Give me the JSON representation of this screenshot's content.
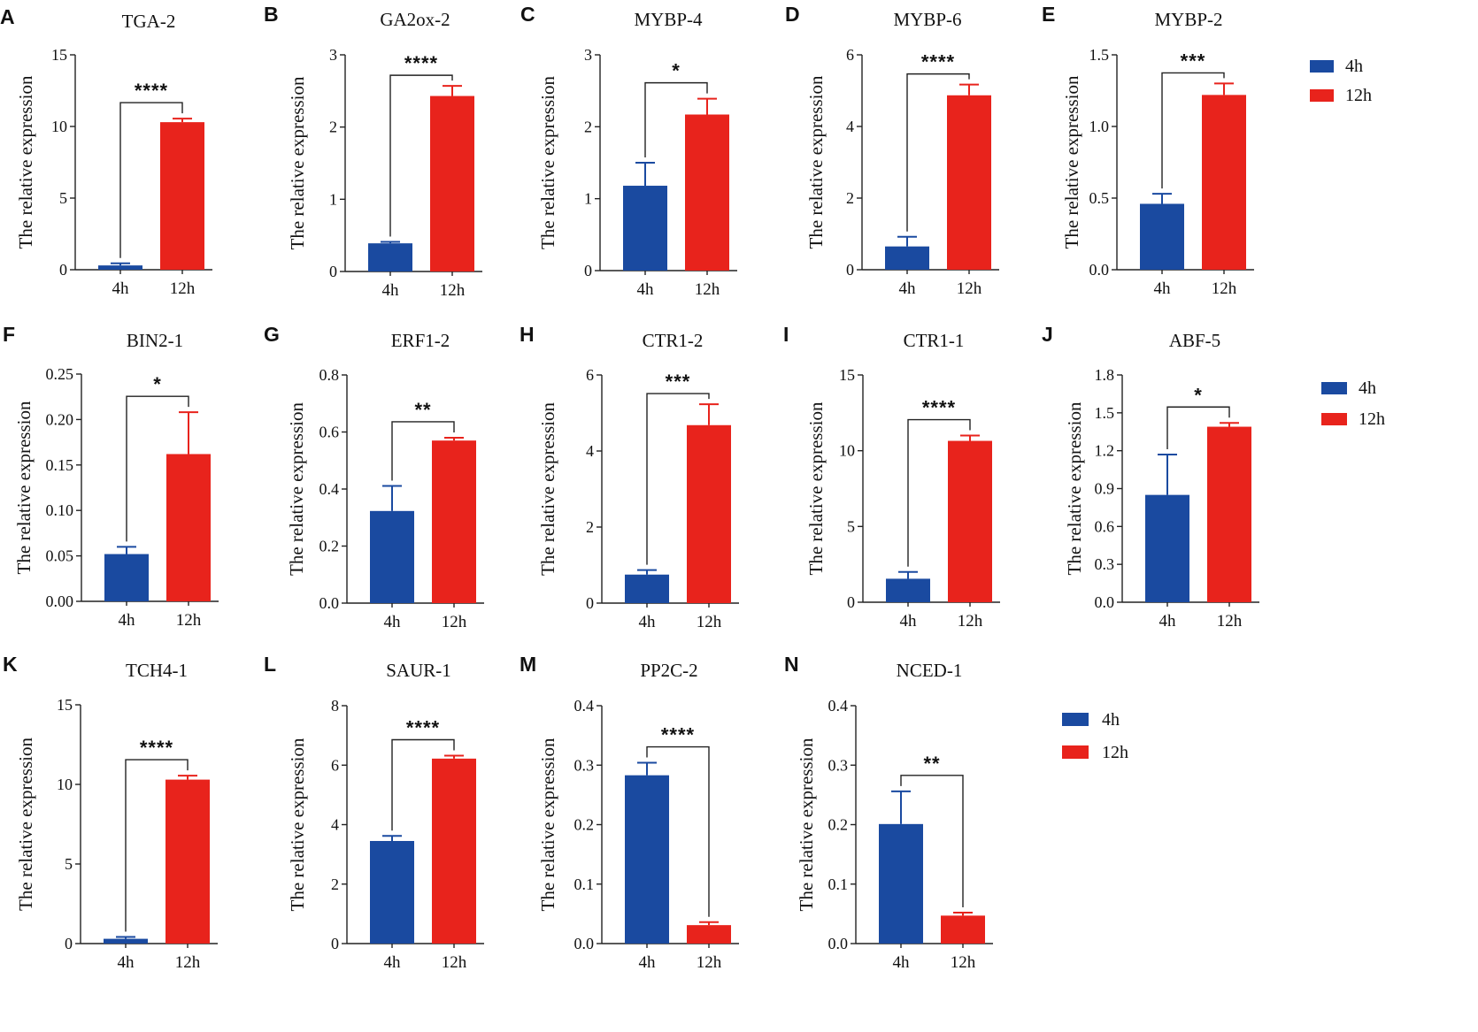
{
  "colors": {
    "4h": "#1a4aa0",
    "12h": "#e8231c"
  },
  "legends": [
    {
      "entries": [
        {
          "label": "4h",
          "color": "#1a4aa0"
        },
        {
          "label": "12h",
          "color": "#e8231c"
        }
      ]
    },
    {
      "entries": [
        {
          "label": "4h",
          "color": "#1a4aa0"
        },
        {
          "label": "12h",
          "color": "#e8231c"
        }
      ]
    },
    {
      "entries": [
        {
          "label": "4h",
          "color": "#1a4aa0"
        },
        {
          "label": "12h",
          "color": "#e8231c"
        }
      ]
    }
  ],
  "chart_data": [
    {
      "panel": "A",
      "type": "bar",
      "title": "TGA-2",
      "ylabel": "The relative expression",
      "categories": [
        "4h",
        "12h"
      ],
      "values": [
        0.3,
        10.3
      ],
      "errors": [
        0.15,
        0.25
      ],
      "ylim": [
        0,
        15
      ],
      "yticks": [
        "0",
        "5",
        "10",
        "15"
      ],
      "significance": "****"
    },
    {
      "panel": "B",
      "type": "bar",
      "title": "GA2ox-2",
      "ylabel": "The relative expression",
      "categories": [
        "4h",
        "12h"
      ],
      "values": [
        0.39,
        2.43
      ],
      "errors": [
        0.02,
        0.14
      ],
      "ylim": [
        0,
        3
      ],
      "yticks": [
        "0",
        "1",
        "2",
        "3"
      ],
      "significance": "****"
    },
    {
      "panel": "C",
      "type": "bar",
      "title": "MYBP-4",
      "ylabel": "The relative expression",
      "categories": [
        "4h",
        "12h"
      ],
      "values": [
        1.18,
        2.17
      ],
      "errors": [
        0.32,
        0.22
      ],
      "ylim": [
        0,
        3
      ],
      "yticks": [
        "0",
        "1",
        "2",
        "3"
      ],
      "significance": "*"
    },
    {
      "panel": "D",
      "type": "bar",
      "title": "MYBP-6",
      "ylabel": "The relative expression",
      "categories": [
        "4h",
        "12h"
      ],
      "values": [
        0.65,
        4.87
      ],
      "errors": [
        0.27,
        0.3
      ],
      "ylim": [
        0,
        6
      ],
      "yticks": [
        "0",
        "2",
        "4",
        "6"
      ],
      "significance": "****"
    },
    {
      "panel": "E",
      "type": "bar",
      "title": "MYBP-2",
      "ylabel": "The relative expression",
      "categories": [
        "4h",
        "12h"
      ],
      "values": [
        0.46,
        1.22
      ],
      "errors": [
        0.07,
        0.08
      ],
      "ylim": [
        0,
        1.5
      ],
      "yticks": [
        "0.0",
        "0.5",
        "1.0",
        "1.5"
      ],
      "significance": "***"
    },
    {
      "panel": "F",
      "type": "bar",
      "title": "BIN2-1",
      "ylabel": "The relative expression",
      "categories": [
        "4h",
        "12h"
      ],
      "values": [
        0.052,
        0.162
      ],
      "errors": [
        0.008,
        0.046
      ],
      "ylim": [
        0,
        0.25
      ],
      "yticks": [
        "0.00",
        "0.05",
        "0.10",
        "0.15",
        "0.20",
        "0.25"
      ],
      "significance": "*"
    },
    {
      "panel": "G",
      "type": "bar",
      "title": "ERF1-2",
      "ylabel": "The relative expression",
      "categories": [
        "4h",
        "12h"
      ],
      "values": [
        0.323,
        0.57
      ],
      "errors": [
        0.088,
        0.01
      ],
      "ylim": [
        0,
        0.8
      ],
      "yticks": [
        "0.0",
        "0.2",
        "0.4",
        "0.6",
        "0.8"
      ],
      "significance": "**"
    },
    {
      "panel": "H",
      "type": "bar",
      "title": "CTR1-2",
      "ylabel": "The relative expression",
      "categories": [
        "4h",
        "12h"
      ],
      "values": [
        0.75,
        4.68
      ],
      "errors": [
        0.12,
        0.55
      ],
      "ylim": [
        0,
        6
      ],
      "yticks": [
        "0",
        "2",
        "4",
        "6"
      ],
      "significance": "***"
    },
    {
      "panel": "I",
      "type": "bar",
      "title": "CTR1-1",
      "ylabel": "The relative expression",
      "categories": [
        "4h",
        "12h"
      ],
      "values": [
        1.55,
        10.65
      ],
      "errors": [
        0.45,
        0.35
      ],
      "ylim": [
        0,
        15
      ],
      "yticks": [
        "0",
        "5",
        "10",
        "15"
      ],
      "significance": "****"
    },
    {
      "panel": "J",
      "type": "bar",
      "title": "ABF-5",
      "ylabel": "The relative expression",
      "categories": [
        "4h",
        "12h"
      ],
      "values": [
        0.85,
        1.39
      ],
      "errors": [
        0.32,
        0.03
      ],
      "ylim": [
        0,
        1.8
      ],
      "yticks": [
        "0.0",
        "0.3",
        "0.6",
        "0.9",
        "1.2",
        "1.5",
        "1.8"
      ],
      "significance": "*"
    },
    {
      "panel": "K",
      "type": "bar",
      "title": "TCH4-1",
      "ylabel": "The relative expression",
      "categories": [
        "4h",
        "12h"
      ],
      "values": [
        0.3,
        10.3
      ],
      "errors": [
        0.12,
        0.25
      ],
      "ylim": [
        0,
        15
      ],
      "yticks": [
        "0",
        "5",
        "10",
        "15"
      ],
      "significance": "****"
    },
    {
      "panel": "L",
      "type": "bar",
      "title": "SAUR-1",
      "ylabel": "The relative expression",
      "categories": [
        "4h",
        "12h"
      ],
      "values": [
        3.45,
        6.22
      ],
      "errors": [
        0.17,
        0.1
      ],
      "ylim": [
        0,
        8
      ],
      "yticks": [
        "0",
        "2",
        "4",
        "6",
        "8"
      ],
      "significance": "****"
    },
    {
      "panel": "M",
      "type": "bar",
      "title": "PP2C-2",
      "ylabel": "The relative expression",
      "categories": [
        "4h",
        "12h"
      ],
      "values": [
        0.283,
        0.031
      ],
      "errors": [
        0.021,
        0.005
      ],
      "ylim": [
        0,
        0.4
      ],
      "yticks": [
        "0.0",
        "0.1",
        "0.2",
        "0.3",
        "0.4"
      ],
      "significance": "****"
    },
    {
      "panel": "N",
      "type": "bar",
      "title": "NCED-1",
      "ylabel": "The relative expression",
      "categories": [
        "4h",
        "12h"
      ],
      "values": [
        0.201,
        0.047
      ],
      "errors": [
        0.055,
        0.005
      ],
      "ylim": [
        0,
        0.4
      ],
      "yticks": [
        "0.0",
        "0.1",
        "0.2",
        "0.3",
        "0.4"
      ],
      "significance": "**"
    }
  ]
}
